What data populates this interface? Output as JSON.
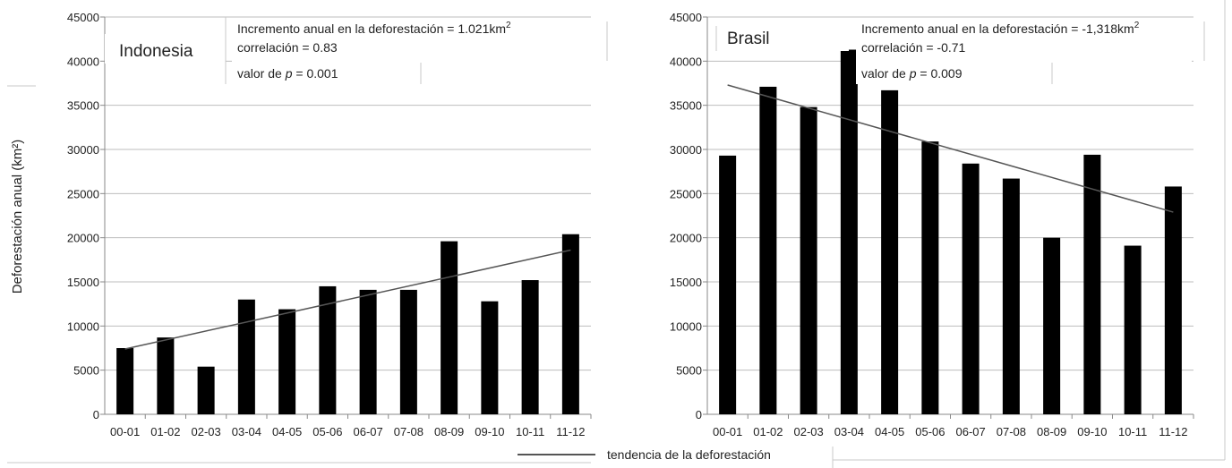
{
  "y_axis_label": "Deforestación anual (km²)",
  "legend_label": "tendencia de la deforestación",
  "colors": {
    "bar": "#000000",
    "trend": "#555555",
    "grid": "#bdbdbd",
    "axis": "#888888",
    "text": "#222222"
  },
  "chart_data": [
    {
      "type": "bar",
      "title": "Indonesia",
      "categories": [
        "00-01",
        "01-02",
        "02-03",
        "03-04",
        "04-05",
        "05-06",
        "06-07",
        "07-08",
        "08-09",
        "09-10",
        "10-11",
        "11-12"
      ],
      "values": [
        7500,
        8700,
        5400,
        13000,
        11900,
        14500,
        14100,
        14100,
        19600,
        12800,
        15200,
        20400
      ],
      "trend": {
        "start": 7400,
        "end": 18600
      },
      "annotations": [
        {
          "text": "Incremento anual en la deforestación = 1.021km",
          "sup": "2"
        },
        {
          "text": "correlación = 0.83"
        },
        {
          "prefix": "valor de ",
          "italic": "p",
          "suffix": " = 0.001"
        }
      ],
      "yticks": [
        0,
        5000,
        10000,
        15000,
        20000,
        25000,
        30000,
        35000,
        40000,
        45000
      ],
      "ylim": [
        0,
        45000
      ],
      "grid": true
    },
    {
      "type": "bar",
      "title": "Brasil",
      "categories": [
        "00-01",
        "01-02",
        "02-03",
        "03-04",
        "04-05",
        "05-06",
        "06-07",
        "07-08",
        "08-09",
        "09-10",
        "10-11",
        "11-12"
      ],
      "values": [
        29300,
        37100,
        34800,
        41300,
        36700,
        30900,
        28400,
        26700,
        20000,
        29400,
        19100,
        25800
      ],
      "trend": {
        "start": 37300,
        "end": 22900
      },
      "annotations": [
        {
          "text": "Incremento anual en la deforestación = -1,318km",
          "sup": "2"
        },
        {
          "text": "correlación = -0.71"
        },
        {
          "prefix": "valor de ",
          "italic": "p",
          "suffix": " = 0.009"
        }
      ],
      "yticks": [
        0,
        5000,
        10000,
        15000,
        20000,
        25000,
        30000,
        35000,
        40000,
        45000
      ],
      "ylim": [
        0,
        45000
      ],
      "grid": true
    }
  ]
}
